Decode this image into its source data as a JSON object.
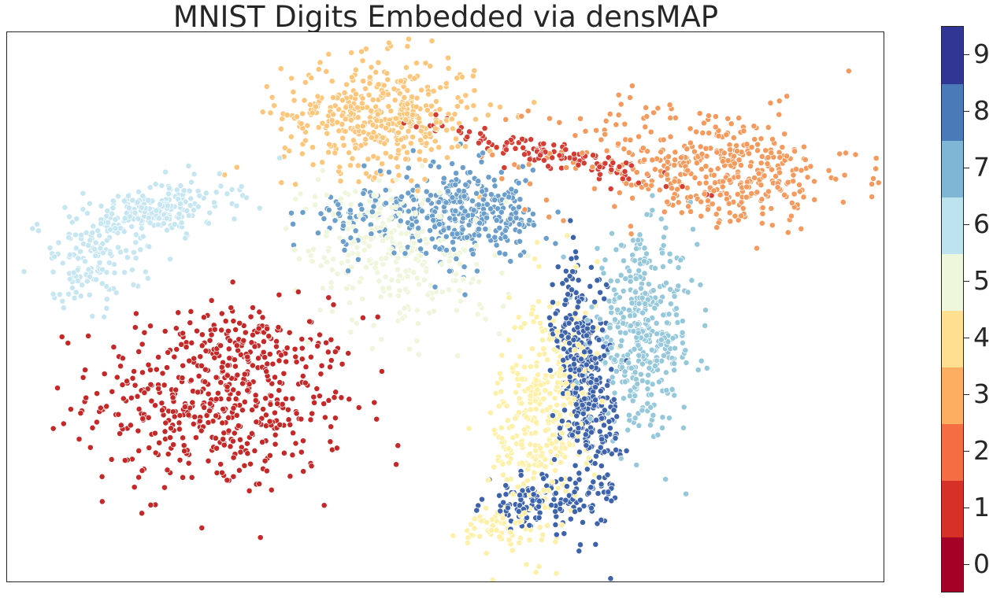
{
  "chart_data": {
    "type": "scatter",
    "title": "MNIST Digits Embedded via densMAP",
    "xlabel": "",
    "ylabel": "",
    "xlim": [
      0,
      100
    ],
    "ylim": [
      0,
      100
    ],
    "axis_ticks": false,
    "grid": false,
    "colorbar": {
      "position": "right",
      "ticks": [
        "0",
        "1",
        "2",
        "3",
        "4",
        "5",
        "6",
        "7",
        "8",
        "9"
      ],
      "colors": [
        "#a50026",
        "#d73027",
        "#f46d43",
        "#fdae61",
        "#fee090",
        "#eef6dc",
        "#bde3ef",
        "#7fb6d6",
        "#4a7ab8",
        "#313695"
      ]
    },
    "point_style": {
      "edge": "#ffffff"
    },
    "series": [
      {
        "label": "0",
        "color": "#c62828",
        "clusters": [
          {
            "cx": 24.5,
            "cy": 33,
            "sx": 7.5,
            "sy": 8.5,
            "n": 520,
            "rot": -0.1
          },
          {
            "cx": 27,
            "cy": 44,
            "sx": 2.5,
            "sy": 2.5,
            "n": 50
          }
        ]
      },
      {
        "label": "1",
        "color": "#d73c32",
        "clusters": [
          {
            "cx": 61.5,
            "cy": 78,
            "sx": 6.8,
            "sy": 1.1,
            "n": 120,
            "rot": -0.38
          }
        ]
      },
      {
        "label": "2",
        "color": "#f59a5c",
        "clusters": [
          {
            "cx": 79,
            "cy": 76,
            "sx": 9,
            "sy": 5.5,
            "n": 330,
            "rot": -0.12
          },
          {
            "cx": 84,
            "cy": 73,
            "sx": 5,
            "sy": 4,
            "n": 110
          }
        ]
      },
      {
        "label": "3",
        "color": "#fdc67a",
        "clusters": [
          {
            "cx": 42.5,
            "cy": 85,
            "sx": 5.5,
            "sy": 5.2,
            "n": 430
          }
        ]
      },
      {
        "label": "4",
        "color": "#fff0a8",
        "clusters": [
          {
            "cx": 61,
            "cy": 30,
            "sx": 2.7,
            "sy": 11.5,
            "n": 380,
            "rot": -0.08
          },
          {
            "cx": 56,
            "cy": 10,
            "sx": 2.2,
            "sy": 2,
            "n": 40
          }
        ]
      },
      {
        "label": "5",
        "color": "#eef6dc",
        "clusters": [
          {
            "cx": 44,
            "cy": 60,
            "sx": 5.5,
            "sy": 7,
            "n": 280,
            "rot": 0.35
          }
        ]
      },
      {
        "label": "6",
        "color": "#c6e6f2",
        "clusters": [
          {
            "cx": 17,
            "cy": 67.5,
            "sx": 4.5,
            "sy": 2.3,
            "n": 220,
            "rot": 0.3
          },
          {
            "cx": 9.5,
            "cy": 58,
            "sx": 3,
            "sy": 4,
            "n": 130
          }
        ]
      },
      {
        "label": "7",
        "color": "#96c8dc",
        "clusters": [
          {
            "cx": 72.5,
            "cy": 45,
            "sx": 3,
            "sy": 8.5,
            "n": 400
          }
        ]
      },
      {
        "label": "8",
        "color": "#6a9fcd",
        "clusters": [
          {
            "cx": 52,
            "cy": 67,
            "sx": 4.5,
            "sy": 4,
            "n": 330,
            "rot": -0.3
          },
          {
            "cx": 40,
            "cy": 66,
            "sx": 3,
            "sy": 3,
            "n": 60
          }
        ]
      },
      {
        "label": "9",
        "color": "#3d63ad",
        "clusters": [
          {
            "cx": 66,
            "cy": 36,
            "sx": 1.6,
            "sy": 11,
            "n": 420,
            "rot": 0.05
          },
          {
            "cx": 60.5,
            "cy": 14,
            "sx": 3,
            "sy": 2.2,
            "n": 110
          }
        ]
      }
    ]
  }
}
